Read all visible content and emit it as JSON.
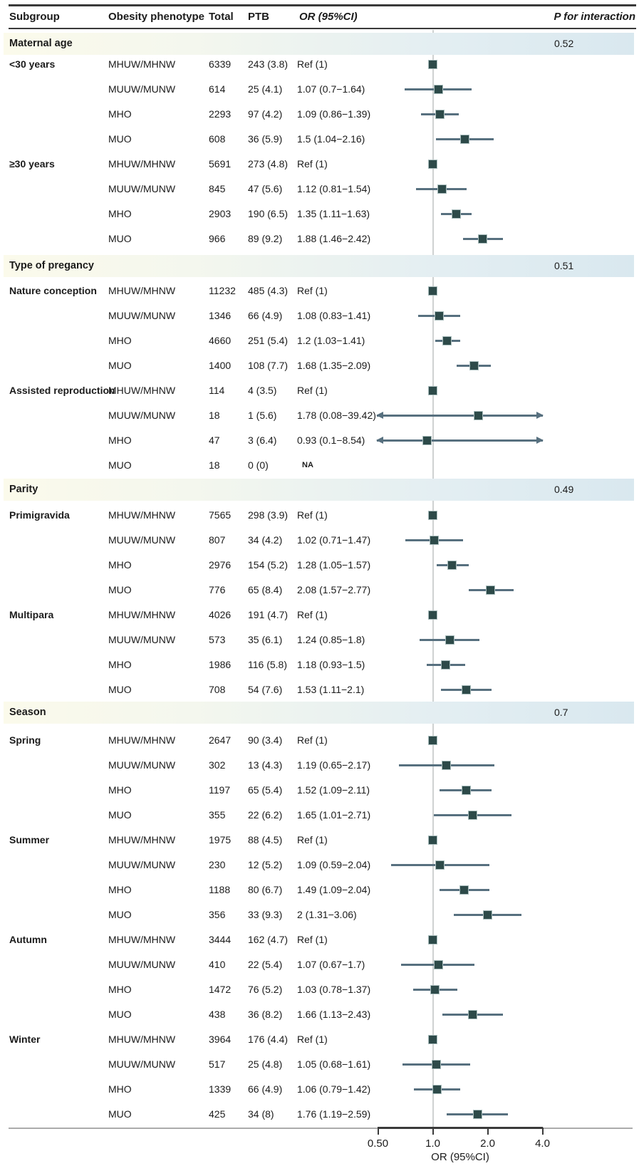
{
  "table": {
    "headers": {
      "subgroup": "Subgroup",
      "phenotype": "Obesity phenotype",
      "total": "Total",
      "ptb": "PTB",
      "or_ci": "OR (95%CI)",
      "p_interaction": "P for interaction"
    }
  },
  "colors": {
    "marker": "#2d4a49",
    "marker_border": "#a9bdbd",
    "ci_line": "#57707f",
    "reference_line": "#cfd2d2",
    "rule_dark": "#3a3a3a",
    "rule_gray": "#acacac",
    "band_left": "#fbfaeb",
    "band_right": "#d9e8ef"
  },
  "chart_data": {
    "type": "forest",
    "title": "",
    "xlabel": "OR (95%CI)",
    "axis": {
      "scale": "log2",
      "label": "OR (95%CI)",
      "ticks": [
        "0.50",
        "1.0",
        "2.0",
        "4.0"
      ],
      "tick_values": [
        0.5,
        1.0,
        2.0,
        4.0
      ],
      "reference_value": 1.0
    },
    "sections": [
      {
        "label": "Maternal age",
        "p_for_interaction": "0.52",
        "rows": [
          {
            "subgroup": "<30 years",
            "phenotype": "MHUW/MHNW",
            "total": "6339",
            "ptb": "243 (3.8)",
            "or_text": "Ref (1)",
            "or": 1.0,
            "lo": null,
            "hi": null,
            "ref": true,
            "na": false,
            "arrows": false
          },
          {
            "subgroup": "",
            "phenotype": "MUUW/MUNW",
            "total": "614",
            "ptb": "25 (4.1)",
            "or_text": "1.07 (0.7−1.64)",
            "or": 1.07,
            "lo": 0.7,
            "hi": 1.64,
            "ref": false,
            "na": false,
            "arrows": false
          },
          {
            "subgroup": "",
            "phenotype": "MHO",
            "total": "2293",
            "ptb": "97 (4.2)",
            "or_text": "1.09 (0.86−1.39)",
            "or": 1.09,
            "lo": 0.86,
            "hi": 1.39,
            "ref": false,
            "na": false,
            "arrows": false
          },
          {
            "subgroup": "",
            "phenotype": "MUO",
            "total": "608",
            "ptb": "36 (5.9)",
            "or_text": "1.5 (1.04−2.16)",
            "or": 1.5,
            "lo": 1.04,
            "hi": 2.16,
            "ref": false,
            "na": false,
            "arrows": false
          },
          {
            "subgroup": "≥30 years",
            "phenotype": "MHUW/MHNW",
            "total": "5691",
            "ptb": "273 (4.8)",
            "or_text": "Ref (1)",
            "or": 1.0,
            "lo": null,
            "hi": null,
            "ref": true,
            "na": false,
            "arrows": false
          },
          {
            "subgroup": "",
            "phenotype": "MUUW/MUNW",
            "total": "845",
            "ptb": "47 (5.6)",
            "or_text": "1.12 (0.81−1.54)",
            "or": 1.12,
            "lo": 0.81,
            "hi": 1.54,
            "ref": false,
            "na": false,
            "arrows": false
          },
          {
            "subgroup": "",
            "phenotype": "MHO",
            "total": "2903",
            "ptb": "190 (6.5)",
            "or_text": "1.35 (1.11−1.63)",
            "or": 1.35,
            "lo": 1.11,
            "hi": 1.63,
            "ref": false,
            "na": false,
            "arrows": false
          },
          {
            "subgroup": "",
            "phenotype": "MUO",
            "total": "966",
            "ptb": "89 (9.2)",
            "or_text": "1.88 (1.46−2.42)",
            "or": 1.88,
            "lo": 1.46,
            "hi": 2.42,
            "ref": false,
            "na": false,
            "arrows": false
          }
        ]
      },
      {
        "label": "Type of pregancy",
        "p_for_interaction": "0.51",
        "rows": [
          {
            "subgroup": "Nature conception",
            "phenotype": "MHUW/MHNW",
            "total": "11232",
            "ptb": "485 (4.3)",
            "or_text": "Ref (1)",
            "or": 1.0,
            "lo": null,
            "hi": null,
            "ref": true,
            "na": false,
            "arrows": false
          },
          {
            "subgroup": "",
            "phenotype": "MUUW/MUNW",
            "total": "1346",
            "ptb": "66 (4.9)",
            "or_text": "1.08 (0.83−1.41)",
            "or": 1.08,
            "lo": 0.83,
            "hi": 1.41,
            "ref": false,
            "na": false,
            "arrows": false
          },
          {
            "subgroup": "",
            "phenotype": "MHO",
            "total": "4660",
            "ptb": "251 (5.4)",
            "or_text": "1.2 (1.03−1.41)",
            "or": 1.2,
            "lo": 1.03,
            "hi": 1.41,
            "ref": false,
            "na": false,
            "arrows": false
          },
          {
            "subgroup": "",
            "phenotype": "MUO",
            "total": "1400",
            "ptb": "108 (7.7)",
            "or_text": "1.68 (1.35−2.09)",
            "or": 1.68,
            "lo": 1.35,
            "hi": 2.09,
            "ref": false,
            "na": false,
            "arrows": false
          },
          {
            "subgroup": "Assisted reproduction",
            "phenotype": "MHUW/MHNW",
            "total": "114",
            "ptb": "4 (3.5)",
            "or_text": "Ref (1)",
            "or": 1.0,
            "lo": null,
            "hi": null,
            "ref": true,
            "na": false,
            "arrows": false
          },
          {
            "subgroup": "",
            "phenotype": "MUUW/MUNW",
            "total": "18",
            "ptb": "1 (5.6)",
            "or_text": "1.78 (0.08−39.42)",
            "or": 1.78,
            "lo": 0.08,
            "hi": 39.42,
            "ref": false,
            "na": false,
            "arrows": true
          },
          {
            "subgroup": "",
            "phenotype": "MHO",
            "total": "47",
            "ptb": "3 (6.4)",
            "or_text": "0.93 (0.1−8.54)",
            "or": 0.93,
            "lo": 0.1,
            "hi": 8.54,
            "ref": false,
            "na": false,
            "arrows": true
          },
          {
            "subgroup": "",
            "phenotype": "MUO",
            "total": "18",
            "ptb": "0 (0)",
            "or_text": "NA",
            "or": null,
            "lo": null,
            "hi": null,
            "ref": false,
            "na": true,
            "arrows": false
          }
        ]
      },
      {
        "label": "Parity",
        "p_for_interaction": "0.49",
        "rows": [
          {
            "subgroup": "Primigravida",
            "phenotype": "MHUW/MHNW",
            "total": "7565",
            "ptb": "298 (3.9)",
            "or_text": "Ref (1)",
            "or": 1.0,
            "lo": null,
            "hi": null,
            "ref": true,
            "na": false,
            "arrows": false
          },
          {
            "subgroup": "",
            "phenotype": "MUUW/MUNW",
            "total": "807",
            "ptb": "34 (4.2)",
            "or_text": "1.02 (0.71−1.47)",
            "or": 1.02,
            "lo": 0.71,
            "hi": 1.47,
            "ref": false,
            "na": false,
            "arrows": false
          },
          {
            "subgroup": "",
            "phenotype": "MHO",
            "total": "2976",
            "ptb": "154 (5.2)",
            "or_text": "1.28 (1.05−1.57)",
            "or": 1.28,
            "lo": 1.05,
            "hi": 1.57,
            "ref": false,
            "na": false,
            "arrows": false
          },
          {
            "subgroup": "",
            "phenotype": "MUO",
            "total": "776",
            "ptb": "65 (8.4)",
            "or_text": "2.08 (1.57−2.77)",
            "or": 2.08,
            "lo": 1.57,
            "hi": 2.77,
            "ref": false,
            "na": false,
            "arrows": false
          },
          {
            "subgroup": "Multipara",
            "phenotype": "MHUW/MHNW",
            "total": "4026",
            "ptb": "191 (4.7)",
            "or_text": "Ref (1)",
            "or": 1.0,
            "lo": null,
            "hi": null,
            "ref": true,
            "na": false,
            "arrows": false
          },
          {
            "subgroup": "",
            "phenotype": "MUUW/MUNW",
            "total": "573",
            "ptb": "35 (6.1)",
            "or_text": "1.24 (0.85−1.8)",
            "or": 1.24,
            "lo": 0.85,
            "hi": 1.8,
            "ref": false,
            "na": false,
            "arrows": false
          },
          {
            "subgroup": "",
            "phenotype": "MHO",
            "total": "1986",
            "ptb": "116 (5.8)",
            "or_text": "1.18 (0.93−1.5)",
            "or": 1.18,
            "lo": 0.93,
            "hi": 1.5,
            "ref": false,
            "na": false,
            "arrows": false
          },
          {
            "subgroup": "",
            "phenotype": "MUO",
            "total": "708",
            "ptb": "54 (7.6)",
            "or_text": "1.53 (1.11−2.1)",
            "or": 1.53,
            "lo": 1.11,
            "hi": 2.1,
            "ref": false,
            "na": false,
            "arrows": false
          }
        ]
      },
      {
        "label": "Season",
        "p_for_interaction": "0.7",
        "rows": [
          {
            "subgroup": "Spring",
            "phenotype": "MHUW/MHNW",
            "total": "2647",
            "ptb": "90 (3.4)",
            "or_text": "Ref (1)",
            "or": 1.0,
            "lo": null,
            "hi": null,
            "ref": true,
            "na": false,
            "arrows": false
          },
          {
            "subgroup": "",
            "phenotype": "MUUW/MUNW",
            "total": "302",
            "ptb": "13 (4.3)",
            "or_text": "1.19 (0.65−2.17)",
            "or": 1.19,
            "lo": 0.65,
            "hi": 2.17,
            "ref": false,
            "na": false,
            "arrows": false
          },
          {
            "subgroup": "",
            "phenotype": "MHO",
            "total": "1197",
            "ptb": "65 (5.4)",
            "or_text": "1.52 (1.09−2.11)",
            "or": 1.52,
            "lo": 1.09,
            "hi": 2.11,
            "ref": false,
            "na": false,
            "arrows": false
          },
          {
            "subgroup": "",
            "phenotype": "MUO",
            "total": "355",
            "ptb": "22 (6.2)",
            "or_text": "1.65 (1.01−2.71)",
            "or": 1.65,
            "lo": 1.01,
            "hi": 2.71,
            "ref": false,
            "na": false,
            "arrows": false
          },
          {
            "subgroup": "Summer",
            "phenotype": "MHUW/MHNW",
            "total": "1975",
            "ptb": "88 (4.5)",
            "or_text": "Ref (1)",
            "or": 1.0,
            "lo": null,
            "hi": null,
            "ref": true,
            "na": false,
            "arrows": false
          },
          {
            "subgroup": "",
            "phenotype": "MUUW/MUNW",
            "total": "230",
            "ptb": "12 (5.2)",
            "or_text": "1.09 (0.59−2.04)",
            "or": 1.09,
            "lo": 0.59,
            "hi": 2.04,
            "ref": false,
            "na": false,
            "arrows": false
          },
          {
            "subgroup": "",
            "phenotype": "MHO",
            "total": "1188",
            "ptb": "80 (6.7)",
            "or_text": "1.49 (1.09−2.04)",
            "or": 1.49,
            "lo": 1.09,
            "hi": 2.04,
            "ref": false,
            "na": false,
            "arrows": false
          },
          {
            "subgroup": "",
            "phenotype": "MUO",
            "total": "356",
            "ptb": "33 (9.3)",
            "or_text": "2 (1.31−3.06)",
            "or": 2.0,
            "lo": 1.31,
            "hi": 3.06,
            "ref": false,
            "na": false,
            "arrows": false
          },
          {
            "subgroup": "Autumn",
            "phenotype": "MHUW/MHNW",
            "total": "3444",
            "ptb": "162 (4.7)",
            "or_text": "Ref (1)",
            "or": 1.0,
            "lo": null,
            "hi": null,
            "ref": true,
            "na": false,
            "arrows": false
          },
          {
            "subgroup": "",
            "phenotype": "MUUW/MUNW",
            "total": "410",
            "ptb": "22 (5.4)",
            "or_text": "1.07 (0.67−1.7)",
            "or": 1.07,
            "lo": 0.67,
            "hi": 1.7,
            "ref": false,
            "na": false,
            "arrows": false
          },
          {
            "subgroup": "",
            "phenotype": "MHO",
            "total": "1472",
            "ptb": "76 (5.2)",
            "or_text": "1.03 (0.78−1.37)",
            "or": 1.03,
            "lo": 0.78,
            "hi": 1.37,
            "ref": false,
            "na": false,
            "arrows": false
          },
          {
            "subgroup": "",
            "phenotype": "MUO",
            "total": "438",
            "ptb": "36 (8.2)",
            "or_text": "1.66 (1.13−2.43)",
            "or": 1.66,
            "lo": 1.13,
            "hi": 2.43,
            "ref": false,
            "na": false,
            "arrows": false
          },
          {
            "subgroup": "Winter",
            "phenotype": "MHUW/MHNW",
            "total": "3964",
            "ptb": "176 (4.4)",
            "or_text": "Ref (1)",
            "or": 1.0,
            "lo": null,
            "hi": null,
            "ref": true,
            "na": false,
            "arrows": false
          },
          {
            "subgroup": "",
            "phenotype": "MUUW/MUNW",
            "total": "517",
            "ptb": "25 (4.8)",
            "or_text": "1.05 (0.68−1.61)",
            "or": 1.05,
            "lo": 0.68,
            "hi": 1.61,
            "ref": false,
            "na": false,
            "arrows": false
          },
          {
            "subgroup": "",
            "phenotype": "MHO",
            "total": "1339",
            "ptb": "66 (4.9)",
            "or_text": "1.06 (0.79−1.42)",
            "or": 1.06,
            "lo": 0.79,
            "hi": 1.42,
            "ref": false,
            "na": false,
            "arrows": false
          },
          {
            "subgroup": "",
            "phenotype": "MUO",
            "total": "425",
            "ptb": "34 (8)",
            "or_text": "1.76 (1.19−2.59)",
            "or": 1.76,
            "lo": 1.19,
            "hi": 2.59,
            "ref": false,
            "na": false,
            "arrows": false
          }
        ]
      }
    ]
  }
}
